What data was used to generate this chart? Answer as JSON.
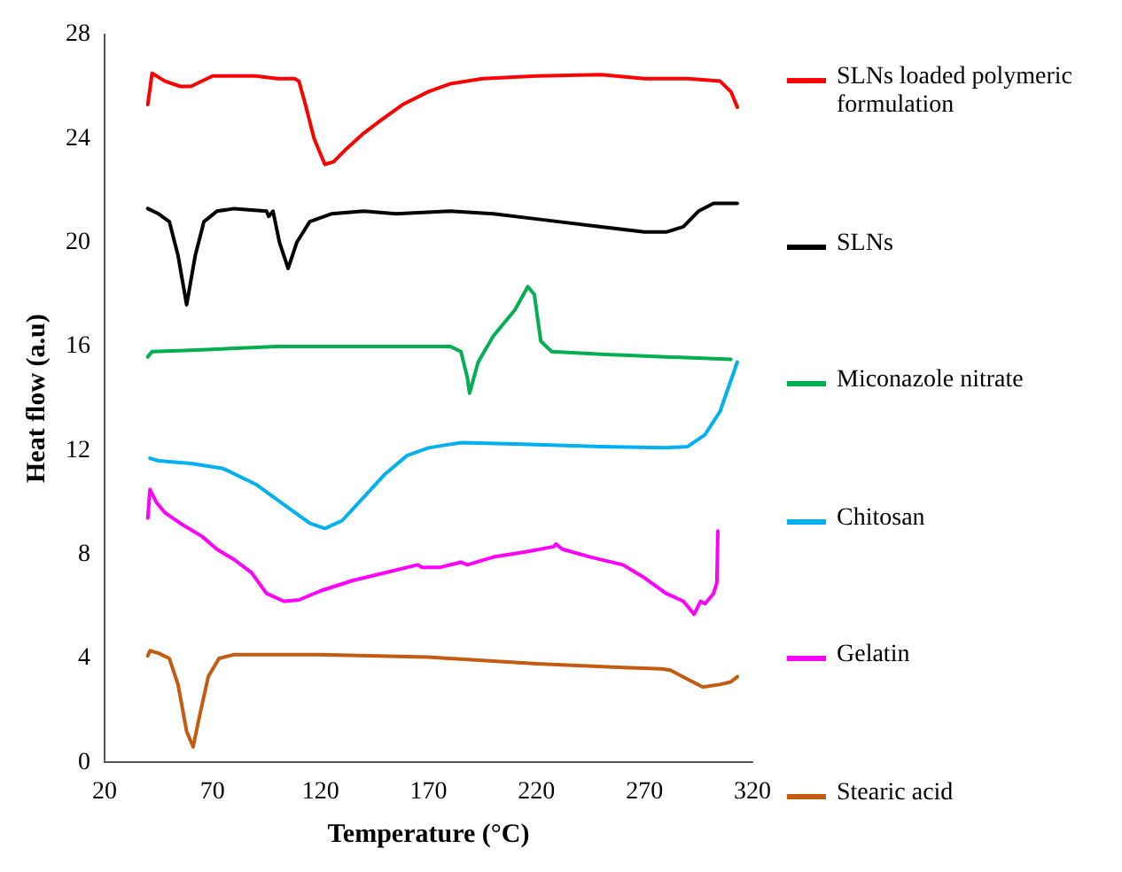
{
  "chart_data": {
    "type": "line",
    "xlabel": "Temperature (°C)",
    "ylabel": "Heat flow (a.u)",
    "xlim": [
      20,
      320
    ],
    "xticks": [
      20,
      70,
      120,
      170,
      220,
      270,
      320
    ],
    "ylim": [
      0,
      28
    ],
    "yticks": [
      0,
      4,
      8,
      12,
      16,
      20,
      24,
      28
    ],
    "grid": false,
    "legend": "right",
    "marker": "none",
    "line_style": "solid",
    "series": [
      {
        "name": "SLNs loaded polymeric formulation",
        "color": "#ff0000",
        "x": [
          40,
          42,
          48,
          55,
          60,
          70,
          90,
          100,
          108,
          110,
          113,
          117,
          122,
          126,
          132,
          140,
          148,
          158,
          170,
          180,
          195,
          220,
          250,
          270,
          290,
          305,
          310,
          313
        ],
        "values": [
          25.3,
          26.5,
          26.2,
          26.0,
          26.0,
          26.4,
          26.4,
          26.3,
          26.3,
          26.2,
          25.3,
          24.0,
          23.0,
          23.1,
          23.6,
          24.2,
          24.7,
          25.3,
          25.8,
          26.1,
          26.3,
          26.4,
          26.45,
          26.3,
          26.3,
          26.2,
          25.8,
          25.2
        ]
      },
      {
        "name": "SLNs",
        "color": "#000000",
        "x": [
          40,
          45,
          50,
          54,
          58,
          62,
          66,
          72,
          80,
          95,
          96,
          98,
          101,
          105,
          109,
          115,
          125,
          140,
          155,
          180,
          200,
          220,
          250,
          270,
          280,
          288,
          295,
          302,
          313
        ],
        "values": [
          21.3,
          21.1,
          20.8,
          19.5,
          17.6,
          19.5,
          20.8,
          21.2,
          21.3,
          21.2,
          21.0,
          21.2,
          20.0,
          19.0,
          20.0,
          20.8,
          21.1,
          21.2,
          21.1,
          21.2,
          21.1,
          20.9,
          20.6,
          20.4,
          20.4,
          20.6,
          21.2,
          21.5,
          21.5
        ]
      },
      {
        "name": "Miconazole nitrate",
        "color": "#00b050",
        "x": [
          40,
          42,
          60,
          100,
          150,
          180,
          185,
          188,
          189,
          193,
          200,
          210,
          216,
          219,
          222,
          227,
          250,
          280,
          310
        ],
        "values": [
          15.6,
          15.8,
          15.85,
          16.0,
          16.0,
          16.0,
          15.8,
          14.8,
          14.2,
          15.4,
          16.4,
          17.4,
          18.3,
          18.0,
          16.2,
          15.8,
          15.7,
          15.6,
          15.5
        ]
      },
      {
        "name": "Chitosan",
        "color": "#00b0f0",
        "x": [
          41,
          45,
          60,
          75,
          90,
          105,
          115,
          122,
          130,
          140,
          150,
          160,
          170,
          185,
          210,
          250,
          280,
          290,
          298,
          305,
          313
        ],
        "values": [
          11.7,
          11.6,
          11.5,
          11.3,
          10.7,
          9.8,
          9.2,
          9.0,
          9.3,
          10.2,
          11.1,
          11.8,
          12.1,
          12.3,
          12.25,
          12.15,
          12.1,
          12.15,
          12.6,
          13.5,
          15.4
        ]
      },
      {
        "name": "Gelatin",
        "color": "#ff00ff",
        "x": [
          40,
          41,
          44,
          48,
          55,
          65,
          72,
          80,
          88,
          95,
          103,
          110,
          120,
          135,
          150,
          165,
          167,
          175,
          185,
          188,
          200,
          215,
          228,
          229,
          232,
          245,
          260,
          270,
          280,
          288,
          293,
          296,
          298,
          302,
          303.5,
          304
        ],
        "values": [
          9.4,
          10.5,
          10.0,
          9.6,
          9.2,
          8.7,
          8.2,
          7.8,
          7.3,
          6.5,
          6.2,
          6.25,
          6.6,
          7.0,
          7.3,
          7.6,
          7.5,
          7.5,
          7.7,
          7.6,
          7.9,
          8.1,
          8.3,
          8.4,
          8.2,
          7.9,
          7.6,
          7.1,
          6.5,
          6.2,
          5.7,
          6.2,
          6.1,
          6.5,
          6.9,
          8.9
        ]
      },
      {
        "name": "Stearic acid",
        "color": "#c55a11",
        "x": [
          40,
          41,
          45,
          50,
          54,
          58,
          61,
          64,
          68,
          73,
          80,
          120,
          170,
          220,
          260,
          278,
          282,
          290,
          297,
          305,
          310,
          313
        ],
        "values": [
          4.1,
          4.3,
          4.2,
          4.0,
          3.0,
          1.2,
          0.6,
          1.8,
          3.3,
          4.0,
          4.15,
          4.15,
          4.05,
          3.8,
          3.65,
          3.6,
          3.55,
          3.2,
          2.9,
          3.0,
          3.1,
          3.3
        ]
      }
    ]
  }
}
